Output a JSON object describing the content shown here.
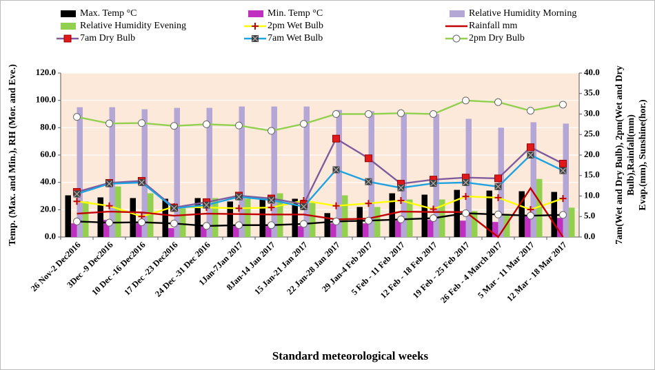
{
  "chart_data": {
    "type": "combo",
    "x_label": "Standard  meteorological weeks",
    "y_label": "Temp. (Max. and Min.), RH (Mor. and Eve.)",
    "y2_label": [
      "7am(Wet and Dry Bulb), 2pm(Wet and Dry",
      "Bulb),Rainfall(mm)",
      "Evap.(mm), Sunshine(hor.)"
    ],
    "categories": [
      "26 Nov-2 Dec2016",
      "3Dec -9 Dec2016",
      "10 Dec -16 Dec2016",
      "17 Dec -23 Dec2016",
      "24 Dec -31 Dec 2016",
      "1Jan-7Jan 2017",
      "8Jan-14 Jan 2017",
      "15 Jan-21 Jan 2017",
      "22 Jan-28 Jan 2017",
      "29 Jan-4 Feb 2017",
      "5 Feb - 11 Feb 2017",
      "12 Feb - 18 Feb 2017",
      "19 Feb - 25 Feb 2017",
      "26 Feb - 4 March 2017",
      "5 Mar - 11 Mar 2017",
      "12 Mar - 18 Mar 2017"
    ],
    "ylim": [
      0,
      120
    ],
    "yticks": [
      {
        "value": 0,
        "label": "0.0"
      },
      {
        "value": 20,
        "label": "20.0"
      },
      {
        "value": 40,
        "label": "40.0"
      },
      {
        "value": 60,
        "label": "60.0"
      },
      {
        "value": 80,
        "label": "80.0"
      },
      {
        "value": 100,
        "label": "100.0"
      },
      {
        "value": 120,
        "label": "120.0"
      }
    ],
    "y2lim": [
      0,
      40
    ],
    "y2ticks": [
      {
        "value": 0,
        "label": "0.0"
      },
      {
        "value": 5,
        "label": "5.0"
      },
      {
        "value": 10,
        "label": "10.0"
      },
      {
        "value": 15,
        "label": "15.0"
      },
      {
        "value": 20,
        "label": "20.0"
      },
      {
        "value": 25,
        "label": "25.0"
      },
      {
        "value": 30,
        "label": "30.0"
      },
      {
        "value": 35,
        "label": "35.0"
      },
      {
        "value": 40,
        "label": "40.0"
      }
    ],
    "grid": true,
    "series": [
      {
        "name": "Max. Temp °C",
        "kind": "bar",
        "color": "#000000",
        "values": [
          30.5,
          29,
          28.5,
          28,
          28.5,
          26,
          28,
          28,
          17.5,
          22,
          32,
          31,
          34.5,
          34,
          33.5,
          33
        ]
      },
      {
        "name": "Min.  Temp °C",
        "kind": "bar",
        "color": "#c030c0",
        "values": [
          10,
          12.5,
          10,
          6.5,
          8,
          8,
          8,
          8,
          10,
          10,
          12,
          12.5,
          12,
          11,
          16,
          14
        ]
      },
      {
        "name": "Relative Humidity Morning",
        "kind": "bar",
        "color": "#b4a7d6",
        "values": [
          95,
          95,
          93.5,
          94.5,
          94.5,
          95.5,
          95.5,
          95.5,
          93,
          92,
          90,
          90,
          86.5,
          80,
          84,
          83
        ]
      },
      {
        "name": "Relative Humidity Evening",
        "kind": "bar",
        "color": "#92d050",
        "values": [
          26,
          37,
          32,
          21,
          28.5,
          28,
          32,
          25,
          30.5,
          22,
          27.5,
          27.5,
          19,
          17,
          42.5,
          21.5
        ]
      },
      {
        "name": "2pm Wet Bulb",
        "kind": "line",
        "axis": "y2",
        "color": "#ffff00",
        "marker": "plus",
        "marker_color": "#c00000",
        "values": [
          8.7,
          7.6,
          5.0,
          7.4,
          7.2,
          7.0,
          7.2,
          8.9,
          7.6,
          8.2,
          8.9,
          6.8,
          9.9,
          9.6,
          6.7,
          9.4
        ]
      },
      {
        "name": "Rainfall mm",
        "kind": "line",
        "axis": "y2",
        "color": "#c00000",
        "marker": "none",
        "values": [
          5.7,
          6.2,
          6.0,
          5.2,
          5.7,
          5.6,
          5.5,
          5.5,
          4.3,
          4.5,
          6.2,
          6.1,
          6.1,
          0,
          11.9,
          0
        ]
      },
      {
        "name": "7am Dry Bulb",
        "kind": "line",
        "axis": "y2",
        "color": "#7f5a9f",
        "marker": "square",
        "marker_color": "#e0191b",
        "values": [
          11.0,
          13.2,
          13.7,
          7.2,
          8.5,
          10.1,
          9.4,
          8.0,
          24.0,
          19.2,
          13.0,
          14.0,
          14.5,
          14.3,
          21.9,
          17.9
        ]
      },
      {
        "name": "7am Wet Bulb",
        "kind": "line",
        "axis": "y2",
        "color": "#1fa2e0",
        "marker": "x-square",
        "marker_color": "#404040",
        "values": [
          10.5,
          13.0,
          13.3,
          7.0,
          7.8,
          9.8,
          9.0,
          7.4,
          16.4,
          13.5,
          12.0,
          13.1,
          13.3,
          12.3,
          20.0,
          16.2
        ]
      },
      {
        "name": "2pm Dry Bulb",
        "kind": "line",
        "axis": "y2",
        "color": "#92d050",
        "marker": "circle",
        "marker_color": "#ffffff",
        "values": [
          29.3,
          27.7,
          27.8,
          27.1,
          27.5,
          27.2,
          25.9,
          27.6,
          30.0,
          30.0,
          30.2,
          30.0,
          33.3,
          32.9,
          30.8,
          32.3
        ]
      },
      {
        "kind": "line",
        "axis": "y2",
        "color": "#000000",
        "marker": "circle",
        "marker_color": "#ffffff",
        "values": [
          3.8,
          3.5,
          3.6,
          3.3,
          2.7,
          2.9,
          2.9,
          3.2,
          3.8,
          4.0,
          4.3,
          4.6,
          5.8,
          5.5,
          5.2,
          5.4
        ]
      }
    ]
  }
}
